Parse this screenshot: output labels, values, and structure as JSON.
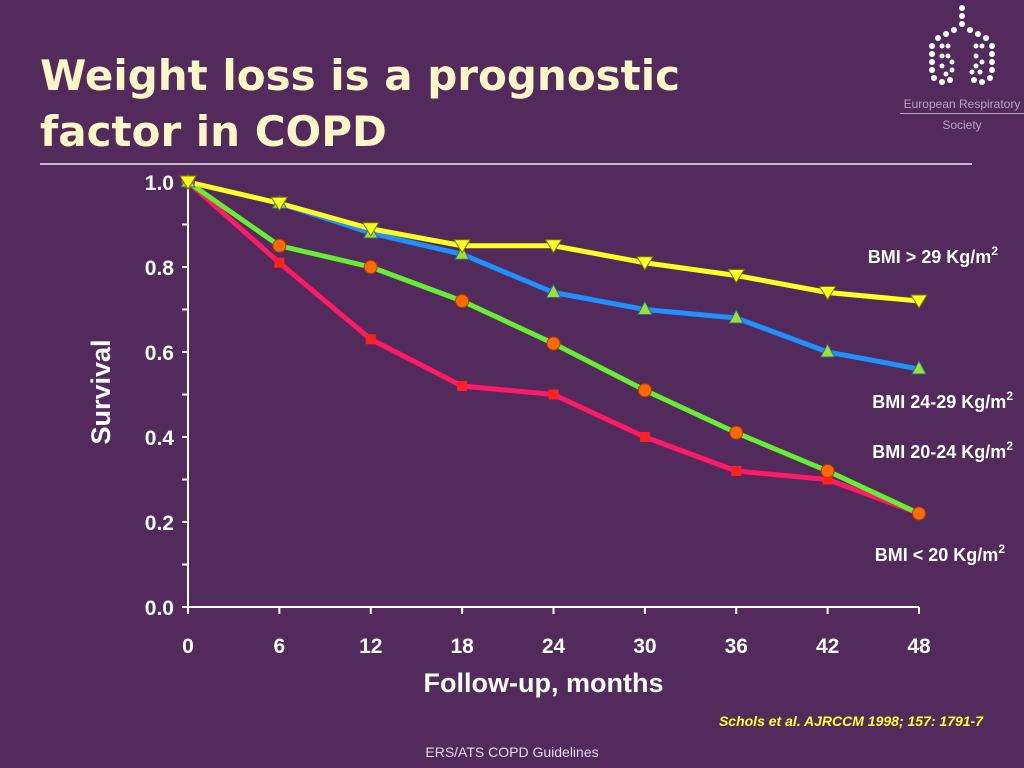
{
  "slide": {
    "title": "Weight loss is a prognostic factor in COPD",
    "citation": "Schols et al. AJRCCM 1998; 157: 1791-7",
    "footer": "ERS/ATS COPD Guidelines",
    "logo_text_line1": "European Respiratory",
    "logo_text_line2": "Society"
  },
  "chart_data": {
    "type": "line",
    "title": "",
    "xlabel": "Follow-up, months",
    "ylabel": "Survival",
    "x": [
      0,
      6,
      12,
      18,
      24,
      30,
      36,
      42,
      48
    ],
    "xlim": [
      0,
      48
    ],
    "ylim": [
      0,
      1.0
    ],
    "x_ticks": [
      "0",
      "6",
      "12",
      "18",
      "24",
      "30",
      "36",
      "42",
      "48"
    ],
    "y_ticks": [
      "0.0",
      "0.2",
      "0.4",
      "0.6",
      "0.8",
      "1.0"
    ],
    "grid": false,
    "series": [
      {
        "name": "BMI > 29 Kg/m2",
        "label_main": "BMI > 29 Kg/m",
        "label_sup": "2",
        "color": "#ffff22",
        "marker": "triangle-down",
        "marker_color": "#ffff22",
        "values": [
          1.0,
          0.95,
          0.89,
          0.85,
          0.85,
          0.81,
          0.78,
          0.74,
          0.72
        ]
      },
      {
        "name": "BMI 24-29 Kg/m2",
        "label_main": "BMI 24-29 Kg/m",
        "label_sup": "2",
        "color": "#1e90ff",
        "marker": "triangle-up",
        "marker_color": "#9fe02a",
        "values": [
          1.0,
          0.95,
          0.88,
          0.83,
          0.74,
          0.7,
          0.68,
          0.6,
          0.56
        ]
      },
      {
        "name": "BMI 20-24 Kg/m2",
        "label_main": "BMI 20-24 Kg/m",
        "label_sup": "2",
        "color": "#66ee33",
        "marker": "circle",
        "marker_color": "#ff6a00",
        "values": [
          1.0,
          0.85,
          0.8,
          0.72,
          0.62,
          0.51,
          0.41,
          0.32,
          0.22
        ]
      },
      {
        "name": "BMI < 20 Kg/m2",
        "label_main": "BMI < 20 Kg/m",
        "label_sup": "2",
        "color": "#ff1a66",
        "marker": "square",
        "marker_color": "#ff2020",
        "values": [
          1.0,
          0.81,
          0.63,
          0.52,
          0.5,
          0.4,
          0.32,
          0.3,
          0.22
        ]
      }
    ]
  }
}
